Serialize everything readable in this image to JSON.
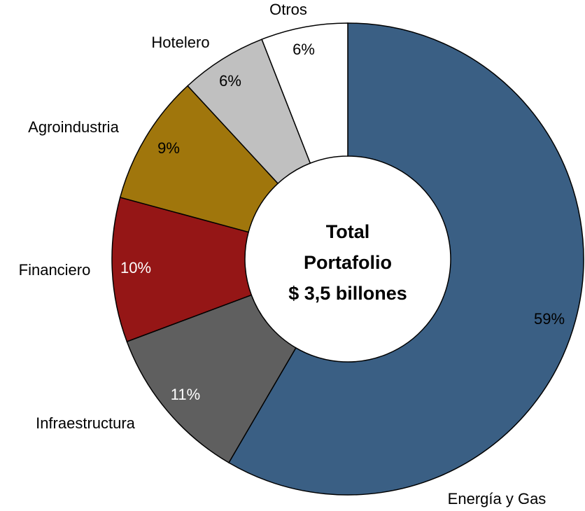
{
  "chart_data": {
    "type": "donut",
    "categories": [
      "Energía y Gas",
      "Infraestructura",
      "Financiero",
      "Agroindustria",
      "Hotelero",
      "Otros"
    ],
    "values": [
      59,
      11,
      10,
      9,
      6,
      6
    ],
    "value_labels": [
      "59%",
      "11%",
      "10%",
      "9%",
      "6%",
      "6%"
    ],
    "colors": [
      "#3a5f84",
      "#5f5f5f",
      "#951616",
      "#a0760c",
      "#c0c0c0",
      "#ffffff"
    ],
    "center_text": [
      "Total",
      "Portafolio",
      "$ 3,5 billones"
    ]
  }
}
